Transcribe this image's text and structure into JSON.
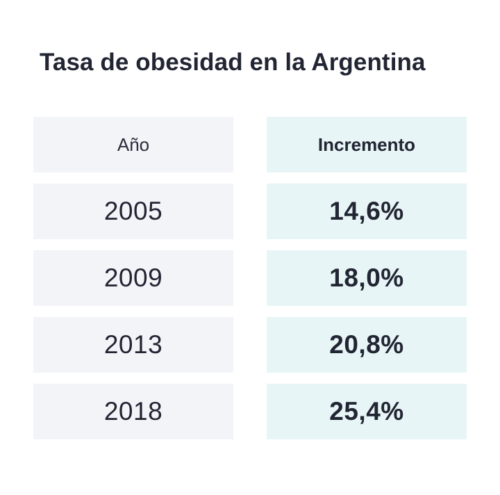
{
  "chart_data": {
    "type": "table",
    "title": "Tasa de obesidad en la Argentina",
    "columns": [
      "Año",
      "Incremento"
    ],
    "rows": [
      {
        "year": "2005",
        "value": "14,6%"
      },
      {
        "year": "2009",
        "value": "18,0%"
      },
      {
        "year": "2013",
        "value": "20,8%"
      },
      {
        "year": "2018",
        "value": "25,4%"
      }
    ],
    "colors": {
      "text": "#222533",
      "year_column_bg": "#f2f4f8",
      "value_column_bg": "#e7f5f6"
    }
  }
}
